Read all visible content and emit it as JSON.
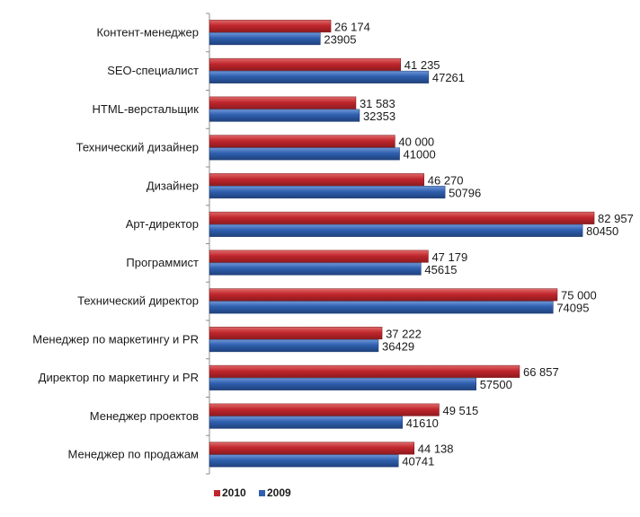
{
  "chart_data": {
    "type": "bar",
    "orientation": "horizontal",
    "categories": [
      "Контент-менеджер",
      "SEO-специалист",
      "HTML-верстальщик",
      "Технический дизайнер",
      "Дизайнер",
      "Арт-директор",
      "Программист",
      "Технический директор",
      "Менеджер по маркетингу и PR",
      "Директор по маркетингу и PR",
      "Менеджер проектов",
      "Менеджер по продажам"
    ],
    "series": [
      {
        "name": "2010",
        "color": "#c0272d",
        "values": [
          26174,
          41235,
          31583,
          40000,
          46270,
          82957,
          47179,
          75000,
          37222,
          66857,
          49515,
          44138
        ],
        "labels": [
          "26 174",
          "41 235",
          "31 583",
          "40 000",
          "46 270",
          "82 957",
          "47 179",
          "75 000",
          "37 222",
          "66 857",
          "49 515",
          "44 138"
        ]
      },
      {
        "name": "2009",
        "color": "#2f5fae",
        "values": [
          23905,
          47261,
          32353,
          41000,
          50796,
          80450,
          45615,
          74095,
          36429,
          57500,
          41610,
          40741
        ],
        "labels": [
          "23905",
          "47261",
          "32353",
          "41000",
          "50796",
          "80450",
          "45615",
          "74095",
          "36429",
          "57500",
          "41610",
          "40741"
        ]
      }
    ],
    "xlim": [
      0,
      90000
    ],
    "grid": false,
    "legend": "bottom",
    "title": "",
    "xlabel": "",
    "ylabel": ""
  }
}
